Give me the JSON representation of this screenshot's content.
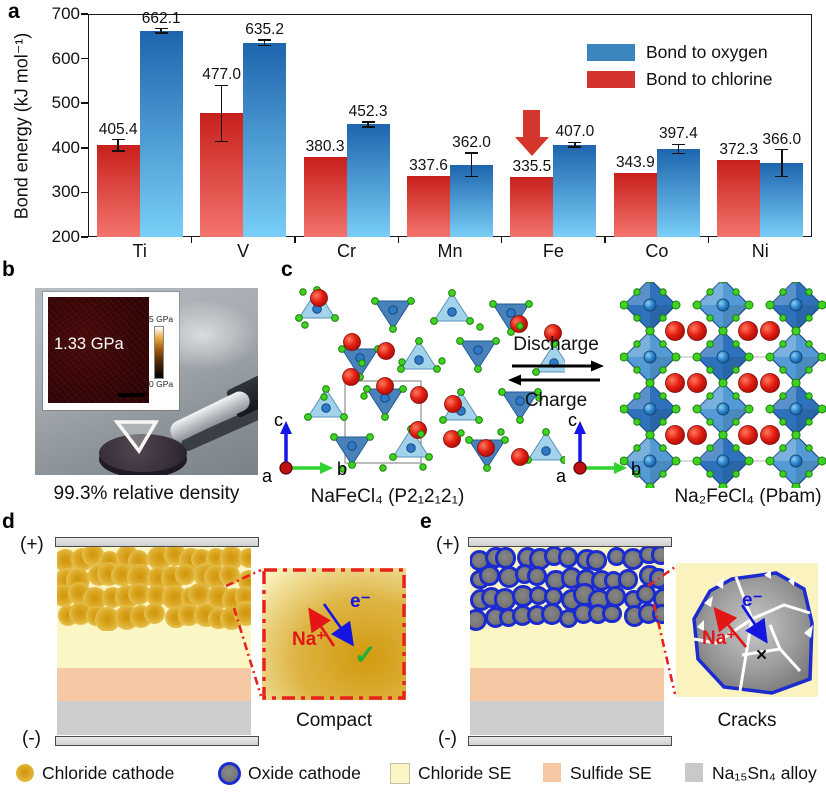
{
  "panels": {
    "a": "a",
    "b": "b",
    "c": "c",
    "d": "d",
    "e": "e"
  },
  "chart_data": {
    "type": "bar",
    "ylabel": "Bond energy (kJ mol⁻¹)",
    "ylim": [
      200,
      700
    ],
    "yticks": [
      200,
      300,
      400,
      500,
      600,
      700
    ],
    "categories": [
      "Ti",
      "V",
      "Cr",
      "Mn",
      "Fe",
      "Co",
      "Ni"
    ],
    "series": [
      {
        "name": "Bond to chlorine",
        "values": [
          405.4,
          477.0,
          380.3,
          337.6,
          335.5,
          343.9,
          372.3
        ],
        "errors": [
          13,
          63,
          0,
          0,
          0,
          0,
          0
        ],
        "gradient": [
          "#c8201c",
          "#f3746d"
        ],
        "legend_color": "#d5332f"
      },
      {
        "name": "Bond to oxygen",
        "values": [
          662.1,
          635.2,
          452.3,
          362.0,
          407.0,
          397.4,
          366.0
        ],
        "errors": [
          5,
          6,
          6,
          26,
          5,
          10,
          30
        ],
        "gradient": [
          "#1e65ad",
          "#79cef7"
        ],
        "legend_color": "#3c86c0"
      }
    ],
    "legend": [
      {
        "label": "Bond to oxygen",
        "color": "#3c86c0"
      },
      {
        "label": "Bond to chlorine",
        "color": "#d5332f"
      }
    ],
    "annotation": {
      "type": "down-arrow",
      "category": "Fe",
      "series_index": 0,
      "color": "#d5362c"
    }
  },
  "panel_b": {
    "inset_value": "1.33 GPa",
    "colorbar_top": "5 GPa",
    "colorbar_bottom": "0 GPa",
    "caption": "99.3% relative density"
  },
  "panel_c": {
    "discharge": "Discharge",
    "charge": "Charge",
    "left_formula": "NaFeCl₄ (P2₁2₁2₁)",
    "right_formula": "Na₂FeCl₄ (Pbam)",
    "axis_a": "a",
    "axis_b": "b",
    "axis_c": "c"
  },
  "panel_d": {
    "plus": "(+)",
    "minus": "(-)",
    "na_ion": "Na⁺",
    "electron": "e⁻",
    "check": "✓",
    "caption": "Compact"
  },
  "panel_e": {
    "plus": "(+)",
    "minus": "(-)",
    "na_ion": "Na⁺",
    "electron": "e⁻",
    "cross": "×",
    "caption": "Cracks"
  },
  "legend_row": {
    "items": [
      {
        "label": "Chloride cathode",
        "swatch": "gold-circle",
        "color": "#ddad2c"
      },
      {
        "label": "Oxide cathode",
        "swatch": "gray-circle-blue-ring",
        "color": "#7d7d7d"
      },
      {
        "label": "Chloride SE",
        "swatch": "pale-yellow-square",
        "color": "#fbf5c3"
      },
      {
        "label": "Sulfide SE",
        "swatch": "peach-square",
        "color": "#f6c9a4"
      },
      {
        "label": "Na₁₅Sn₄ alloy",
        "swatch": "gray-square",
        "color": "#c9c9c9"
      }
    ]
  }
}
